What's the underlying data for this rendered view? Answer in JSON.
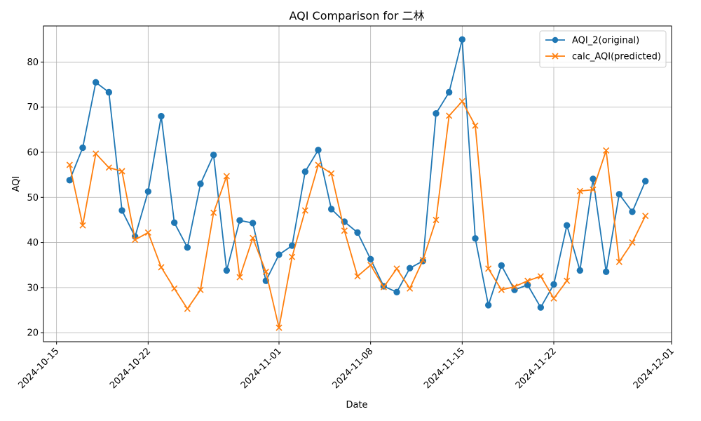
{
  "chart_data": {
    "type": "line",
    "title": "AQI Comparison for 二林",
    "xlabel": "Date",
    "ylabel": "AQI",
    "x": [
      "2024-10-16",
      "2024-10-17",
      "2024-10-18",
      "2024-10-19",
      "2024-10-20",
      "2024-10-21",
      "2024-10-22",
      "2024-10-23",
      "2024-10-24",
      "2024-10-25",
      "2024-10-26",
      "2024-10-27",
      "2024-10-28",
      "2024-10-29",
      "2024-10-30",
      "2024-10-31",
      "2024-11-01",
      "2024-11-02",
      "2024-11-03",
      "2024-11-04",
      "2024-11-05",
      "2024-11-06",
      "2024-11-07",
      "2024-11-08",
      "2024-11-09",
      "2024-11-10",
      "2024-11-11",
      "2024-11-12",
      "2024-11-13",
      "2024-11-14",
      "2024-11-15",
      "2024-11-16",
      "2024-11-17",
      "2024-11-18",
      "2024-11-19",
      "2024-11-20",
      "2024-11-21",
      "2024-11-22",
      "2024-11-23",
      "2024-11-24",
      "2024-11-25",
      "2024-11-26",
      "2024-11-27",
      "2024-11-28",
      "2024-11-29"
    ],
    "xlim": [
      "2024-10-14",
      "2024-12-01"
    ],
    "ylim": [
      18,
      88
    ],
    "x_ticks": [
      "2024-10-15",
      "2024-10-22",
      "2024-11-01",
      "2024-11-08",
      "2024-11-15",
      "2024-11-22",
      "2024-12-01"
    ],
    "y_ticks": [
      20,
      30,
      40,
      50,
      60,
      70,
      80
    ],
    "grid": true,
    "legend_position": "top-right",
    "series": [
      {
        "name": "AQI_2(original)",
        "color": "#1f77b4",
        "marker": "circle",
        "values": [
          53.8,
          61.0,
          75.5,
          73.3,
          47.1,
          41.3,
          51.3,
          68.0,
          44.4,
          38.9,
          53.0,
          59.4,
          33.8,
          44.9,
          44.3,
          31.5,
          37.3,
          39.3,
          55.7,
          60.5,
          47.4,
          44.6,
          42.2,
          36.3,
          30.3,
          29.0,
          34.3,
          35.9,
          68.6,
          73.3,
          85.0,
          40.9,
          26.1,
          34.9,
          29.5,
          30.6,
          25.6,
          30.7,
          43.8,
          33.8,
          54.1,
          33.5,
          50.7,
          46.8,
          53.6
        ]
      },
      {
        "name": "calc_AQI(predicted)",
        "color": "#ff7f0e",
        "marker": "x",
        "values": [
          57.2,
          43.8,
          59.7,
          56.6,
          55.8,
          40.6,
          42.2,
          34.5,
          29.8,
          25.3,
          29.5,
          46.6,
          54.7,
          32.3,
          41.0,
          33.5,
          21.1,
          36.8,
          47.1,
          57.2,
          55.3,
          42.6,
          32.5,
          35.0,
          30.1,
          34.2,
          29.8,
          36.1,
          45.0,
          68.1,
          71.3,
          65.9,
          34.2,
          29.5,
          30.2,
          31.5,
          32.5,
          27.6,
          31.5,
          51.4,
          51.7,
          60.4,
          35.7,
          40.0,
          45.9
        ]
      }
    ]
  }
}
